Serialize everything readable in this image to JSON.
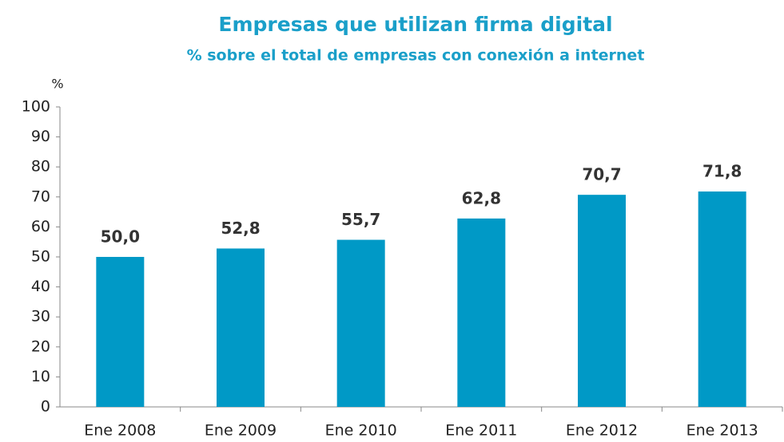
{
  "chart_data": {
    "type": "bar",
    "title": "Empresas que utilizan firma digital",
    "subtitle": "% sobre el total de empresas con conexión a internet",
    "ylabel": "%",
    "categories": [
      "Ene 2008",
      "Ene 2009",
      "Ene 2010",
      "Ene 2011",
      "Ene 2012",
      "Ene 2013"
    ],
    "values": [
      50,
      52.8,
      55.7,
      62.8,
      70.7,
      71.8
    ],
    "value_labels": [
      "50,0",
      "52,8",
      "55,7",
      "62,8",
      "70,7",
      "71,8"
    ],
    "color": "#0099c6",
    "ylim": [
      0,
      100
    ],
    "yticks": [
      0,
      10,
      20,
      30,
      40,
      50,
      60,
      70,
      80,
      90,
      100
    ],
    "grid": false
  }
}
